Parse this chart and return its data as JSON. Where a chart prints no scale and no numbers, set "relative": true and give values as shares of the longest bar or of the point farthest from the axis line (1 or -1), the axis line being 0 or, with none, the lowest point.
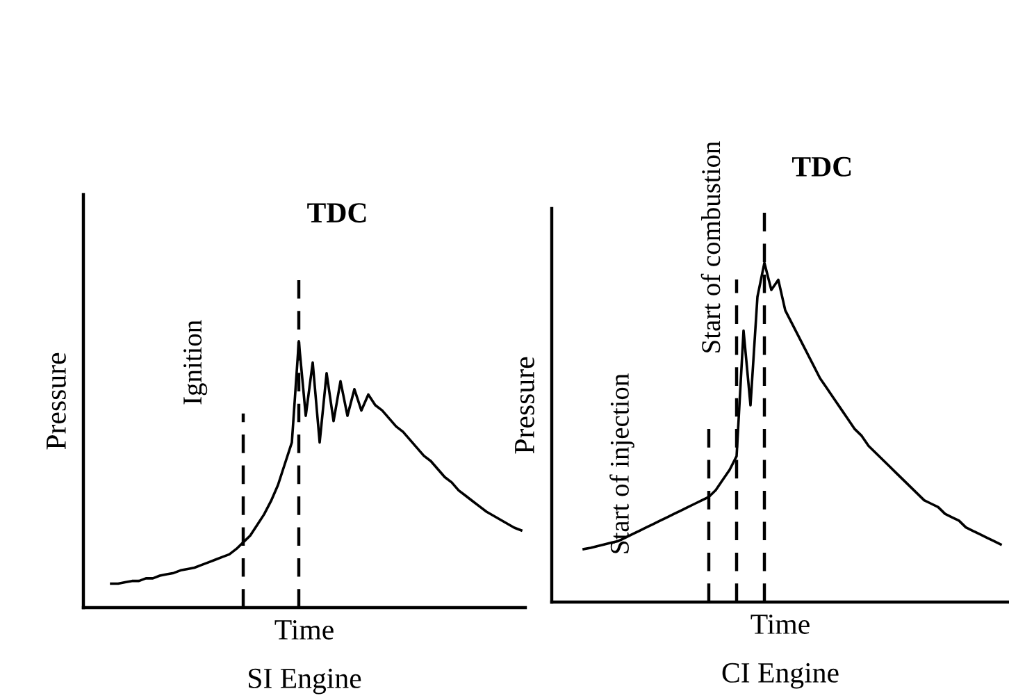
{
  "chart_data": [
    {
      "type": "line",
      "title": "SI Engine",
      "xlabel": "Time",
      "ylabel": "Pressure",
      "relative": true,
      "tick_labels": false,
      "marker": "none",
      "line_style": "solid",
      "categories": [
        null,
        null,
        null,
        null,
        null,
        null,
        null,
        null,
        null,
        null,
        null,
        null,
        null,
        null,
        null,
        null,
        null,
        null,
        null,
        null,
        null,
        null,
        null,
        null,
        null,
        null,
        null,
        null,
        null,
        null,
        null,
        null,
        null,
        null,
        null,
        null,
        null,
        null,
        null,
        null,
        null,
        null,
        null,
        null,
        null,
        null,
        null,
        null,
        null,
        null,
        null,
        null,
        null,
        null,
        null,
        null,
        null,
        null,
        null,
        null
      ],
      "series": [
        {
          "color": "#000000",
          "values": [
            0.09,
            0.09,
            0.095,
            0.1,
            0.1,
            0.11,
            0.11,
            0.12,
            0.125,
            0.13,
            0.14,
            0.145,
            0.15,
            0.16,
            0.17,
            0.18,
            0.19,
            0.2,
            0.22,
            0.245,
            0.27,
            0.31,
            0.35,
            0.4,
            0.46,
            0.54,
            0.62,
            1.0,
            0.72,
            0.92,
            0.62,
            0.88,
            0.7,
            0.85,
            0.72,
            0.82,
            0.74,
            0.8,
            0.76,
            0.74,
            0.71,
            0.68,
            0.66,
            0.63,
            0.6,
            0.57,
            0.55,
            0.52,
            0.49,
            0.47,
            0.44,
            0.42,
            0.4,
            0.38,
            0.36,
            0.345,
            0.33,
            0.315,
            0.3,
            0.29
          ]
        }
      ],
      "annotations": [
        "Ignition",
        "TDC"
      ]
    },
    {
      "type": "line",
      "title": "CI Engine",
      "xlabel": "Time",
      "ylabel": "Pressure",
      "relative": true,
      "tick_labels": false,
      "marker": "none",
      "line_style": "solid",
      "categories": [
        null,
        null,
        null,
        null,
        null,
        null,
        null,
        null,
        null,
        null,
        null,
        null,
        null,
        null,
        null,
        null,
        null,
        null,
        null,
        null,
        null,
        null,
        null,
        null,
        null,
        null,
        null,
        null,
        null,
        null,
        null,
        null,
        null,
        null,
        null,
        null,
        null,
        null,
        null,
        null,
        null,
        null,
        null,
        null,
        null,
        null,
        null,
        null,
        null,
        null,
        null,
        null,
        null,
        null,
        null,
        null,
        null,
        null,
        null,
        null,
        null
      ],
      "series": [
        {
          "color": "#000000",
          "values": [
            0.156,
            0.16,
            0.165,
            0.17,
            0.175,
            0.18,
            0.19,
            0.2,
            0.21,
            0.22,
            0.23,
            0.24,
            0.25,
            0.26,
            0.27,
            0.28,
            0.29,
            0.3,
            0.31,
            0.33,
            0.36,
            0.39,
            0.43,
            0.8,
            0.58,
            0.9,
            1.0,
            0.92,
            0.95,
            0.86,
            0.82,
            0.78,
            0.74,
            0.7,
            0.66,
            0.63,
            0.6,
            0.57,
            0.54,
            0.51,
            0.49,
            0.46,
            0.44,
            0.42,
            0.4,
            0.38,
            0.36,
            0.34,
            0.32,
            0.3,
            0.29,
            0.28,
            0.26,
            0.25,
            0.24,
            0.22,
            0.21,
            0.2,
            0.19,
            0.18,
            0.17
          ]
        }
      ],
      "annotations": [
        "Start of injection",
        "Start of combustion",
        "TDC"
      ]
    }
  ]
}
